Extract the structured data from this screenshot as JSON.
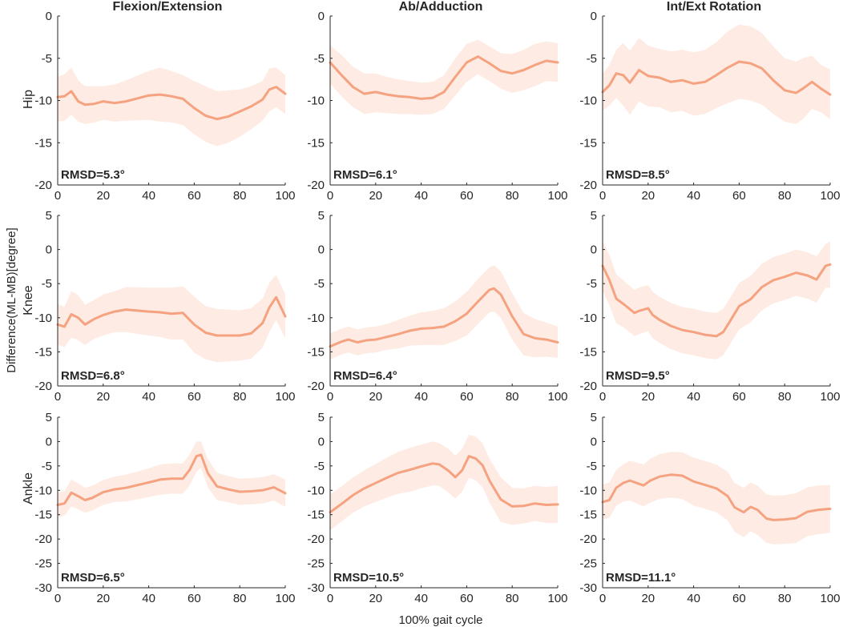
{
  "colors": {
    "line": "#f5a280",
    "band": "#fde4da",
    "axis": "#262626"
  },
  "chart_data": {
    "type": "line",
    "title": "",
    "xlabel": "100% gait cycle",
    "ylabel": "Difference(ML-MB)[degree]",
    "column_titles": [
      "Flexion/Extension",
      "Ab/Adduction",
      "Int/Ext Rotation"
    ],
    "row_labels": [
      "Hip",
      "Knee",
      "Ankle"
    ],
    "xlim": [
      0,
      100
    ],
    "xticks": [
      0,
      20,
      40,
      60,
      80,
      100
    ],
    "grid": false,
    "panels": [
      {
        "row": "Hip",
        "column": "Flexion/Extension",
        "ylim": [
          -20,
          0
        ],
        "yticks": [
          -20,
          -15,
          -10,
          -5,
          0
        ],
        "rmsd_label": "RMSD=5.3°",
        "x": [
          0,
          3,
          6,
          9,
          12,
          16,
          20,
          25,
          30,
          40,
          45,
          50,
          55,
          60,
          65,
          70,
          75,
          80,
          85,
          90,
          93,
          96,
          100
        ],
        "mean": [
          -9.6,
          -9.5,
          -8.9,
          -10.1,
          -10.5,
          -10.4,
          -10.1,
          -10.3,
          -10.1,
          -9.4,
          -9.3,
          -9.5,
          -9.8,
          -10.9,
          -11.8,
          -12.2,
          -11.9,
          -11.3,
          -10.7,
          -9.9,
          -8.7,
          -8.4,
          -9.2
        ],
        "upper": [
          -7.2,
          -6.9,
          -6.1,
          -7.6,
          -8.3,
          -8.3,
          -8.3,
          -8.1,
          -7.6,
          -6.5,
          -6.1,
          -6.5,
          -7.0,
          -7.7,
          -8.3,
          -8.9,
          -8.8,
          -8.7,
          -8.3,
          -7.7,
          -6.2,
          -6.1,
          -7.0
        ],
        "lower": [
          -12.5,
          -12.4,
          -11.7,
          -12.5,
          -12.8,
          -12.6,
          -12.3,
          -12.5,
          -12.4,
          -12.3,
          -12.5,
          -12.6,
          -12.9,
          -14.0,
          -14.9,
          -15.4,
          -15.0,
          -14.3,
          -13.4,
          -12.4,
          -11.3,
          -10.8,
          -11.6
        ]
      },
      {
        "row": "Hip",
        "column": "Ab/Adduction",
        "ylim": [
          -20,
          0
        ],
        "yticks": [
          -20,
          -15,
          -10,
          -5,
          0
        ],
        "rmsd_label": "RMSD=6.1°",
        "x": [
          0,
          5,
          10,
          15,
          20,
          25,
          30,
          35,
          40,
          45,
          50,
          55,
          60,
          65,
          70,
          75,
          80,
          85,
          90,
          95,
          100
        ],
        "mean": [
          -5.5,
          -7.0,
          -8.4,
          -9.2,
          -9.0,
          -9.3,
          -9.5,
          -9.6,
          -9.8,
          -9.7,
          -9.0,
          -7.2,
          -5.5,
          -4.8,
          -5.6,
          -6.5,
          -6.8,
          -6.4,
          -5.8,
          -5.3,
          -5.5
        ],
        "upper": [
          -3.5,
          -4.6,
          -6.0,
          -6.8,
          -6.8,
          -7.2,
          -7.5,
          -7.7,
          -7.9,
          -7.8,
          -7.0,
          -5.0,
          -3.3,
          -2.8,
          -3.6,
          -4.4,
          -4.5,
          -4.0,
          -3.3,
          -3.0,
          -3.2
        ],
        "lower": [
          -8.0,
          -9.5,
          -10.8,
          -11.6,
          -11.4,
          -11.5,
          -11.6,
          -11.6,
          -11.7,
          -11.6,
          -11.0,
          -9.4,
          -7.8,
          -6.9,
          -7.7,
          -8.6,
          -9.1,
          -8.8,
          -8.3,
          -7.7,
          -7.8
        ]
      },
      {
        "row": "Hip",
        "column": "Int/Ext Rotation",
        "ylim": [
          -20,
          0
        ],
        "yticks": [
          -20,
          -15,
          -10,
          -5,
          0
        ],
        "rmsd_label": "RMSD=8.5°",
        "x": [
          0,
          3,
          6,
          9,
          12,
          16,
          20,
          25,
          30,
          35,
          40,
          45,
          50,
          55,
          60,
          65,
          70,
          75,
          80,
          85,
          88,
          92,
          96,
          100
        ],
        "mean": [
          -9.0,
          -8.2,
          -6.8,
          -7.0,
          -7.9,
          -6.4,
          -7.1,
          -7.3,
          -7.8,
          -7.6,
          -8.0,
          -7.8,
          -7.0,
          -6.1,
          -5.4,
          -5.6,
          -6.2,
          -7.6,
          -8.8,
          -9.1,
          -8.6,
          -7.8,
          -8.6,
          -9.3
        ],
        "upper": [
          -6.8,
          -5.8,
          -4.0,
          -3.2,
          -4.1,
          -2.6,
          -3.5,
          -3.9,
          -4.2,
          -4.0,
          -4.3,
          -4.0,
          -3.1,
          -1.8,
          -1.0,
          -1.2,
          -2.0,
          -3.6,
          -5.0,
          -5.4,
          -5.0,
          -4.7,
          -5.8,
          -6.3
        ],
        "lower": [
          -11.2,
          -10.6,
          -9.7,
          -10.6,
          -11.7,
          -10.1,
          -10.7,
          -10.8,
          -11.4,
          -11.2,
          -11.8,
          -11.6,
          -10.9,
          -10.3,
          -9.8,
          -10.0,
          -10.5,
          -11.6,
          -12.5,
          -12.8,
          -12.2,
          -11.0,
          -11.4,
          -12.2
        ]
      },
      {
        "row": "Knee",
        "column": "Flexion/Extension",
        "ylim": [
          -20,
          5
        ],
        "yticks": [
          -20,
          -15,
          -10,
          -5,
          0,
          5
        ],
        "rmsd_label": "RMSD=6.8°",
        "x": [
          0,
          3,
          6,
          9,
          12,
          16,
          20,
          25,
          30,
          40,
          45,
          50,
          55,
          60,
          65,
          70,
          75,
          80,
          85,
          90,
          93,
          96,
          100
        ],
        "mean": [
          -11.0,
          -11.3,
          -9.5,
          -10.0,
          -11.0,
          -10.2,
          -9.6,
          -9.1,
          -8.8,
          -9.1,
          -9.2,
          -9.4,
          -9.3,
          -11.0,
          -12.2,
          -12.6,
          -12.6,
          -12.6,
          -12.3,
          -10.8,
          -8.5,
          -7.0,
          -9.8
        ],
        "upper": [
          -8.0,
          -8.4,
          -6.1,
          -6.7,
          -8.1,
          -7.4,
          -6.6,
          -6.1,
          -5.5,
          -5.6,
          -5.6,
          -5.6,
          -5.4,
          -6.9,
          -8.3,
          -8.7,
          -8.8,
          -8.9,
          -8.6,
          -7.2,
          -4.9,
          -3.7,
          -6.6
        ],
        "lower": [
          -14.0,
          -14.3,
          -12.9,
          -13.3,
          -14.0,
          -13.1,
          -12.6,
          -12.1,
          -12.1,
          -12.6,
          -12.8,
          -13.2,
          -13.2,
          -15.1,
          -16.1,
          -16.5,
          -16.4,
          -16.3,
          -16.0,
          -14.4,
          -12.1,
          -10.3,
          -13.0
        ]
      },
      {
        "row": "Knee",
        "column": "Ab/Adduction",
        "ylim": [
          -20,
          5
        ],
        "yticks": [
          -20,
          -15,
          -10,
          -5,
          0,
          5
        ],
        "rmsd_label": "RMSD=6.4°",
        "x": [
          0,
          5,
          8,
          12,
          16,
          20,
          25,
          30,
          35,
          40,
          45,
          50,
          55,
          60,
          65,
          70,
          72,
          75,
          80,
          85,
          90,
          95,
          100
        ],
        "mean": [
          -14.2,
          -13.5,
          -13.2,
          -13.6,
          -13.3,
          -13.2,
          -12.8,
          -12.4,
          -11.9,
          -11.6,
          -11.5,
          -11.3,
          -10.5,
          -9.4,
          -7.6,
          -5.9,
          -5.7,
          -6.6,
          -9.8,
          -12.4,
          -13.0,
          -13.2,
          -13.6
        ],
        "upper": [
          -12.3,
          -11.6,
          -11.3,
          -11.7,
          -11.4,
          -11.3,
          -10.9,
          -10.3,
          -9.7,
          -9.2,
          -9.0,
          -8.6,
          -7.6,
          -6.2,
          -4.3,
          -2.6,
          -2.3,
          -3.2,
          -6.4,
          -9.3,
          -10.2,
          -10.7,
          -11.3
        ],
        "lower": [
          -16.1,
          -15.4,
          -15.1,
          -15.5,
          -15.2,
          -15.1,
          -14.7,
          -14.5,
          -14.1,
          -14.0,
          -14.0,
          -14.0,
          -13.4,
          -12.6,
          -10.9,
          -9.2,
          -9.1,
          -10.0,
          -13.2,
          -15.5,
          -15.8,
          -15.7,
          -15.9
        ]
      },
      {
        "row": "Knee",
        "column": "Int/Ext Rotation",
        "ylim": [
          -20,
          5
        ],
        "yticks": [
          -20,
          -15,
          -10,
          -5,
          0,
          5
        ],
        "rmsd_label": "RMSD=9.5°",
        "x": [
          0,
          3,
          6,
          10,
          14,
          16,
          20,
          22,
          25,
          30,
          35,
          40,
          45,
          50,
          53,
          56,
          60,
          65,
          70,
          75,
          80,
          85,
          90,
          94,
          98,
          100
        ],
        "mean": [
          -2.4,
          -4.5,
          -7.2,
          -8.2,
          -9.3,
          -9.0,
          -8.6,
          -9.6,
          -10.3,
          -11.2,
          -11.8,
          -12.1,
          -12.5,
          -12.7,
          -12.1,
          -10.5,
          -8.3,
          -7.3,
          -5.5,
          -4.5,
          -4.0,
          -3.4,
          -3.8,
          -4.4,
          -2.4,
          -2.2
        ],
        "upper": [
          1.2,
          -0.8,
          -3.6,
          -4.8,
          -5.9,
          -5.6,
          -5.2,
          -6.2,
          -6.9,
          -7.8,
          -8.4,
          -8.7,
          -9.1,
          -9.3,
          -8.7,
          -7.1,
          -4.9,
          -3.9,
          -2.1,
          -1.1,
          -0.6,
          0.0,
          -0.4,
          -1.0,
          0.8,
          1.2
        ],
        "lower": [
          -6.0,
          -8.2,
          -10.8,
          -11.6,
          -12.7,
          -12.4,
          -12.0,
          -13.0,
          -13.7,
          -14.6,
          -15.2,
          -15.5,
          -15.9,
          -16.1,
          -15.5,
          -13.9,
          -11.7,
          -10.7,
          -8.9,
          -7.9,
          -7.4,
          -6.8,
          -7.2,
          -7.8,
          -5.6,
          -5.6
        ]
      },
      {
        "row": "Ankle",
        "column": "Flexion/Extension",
        "ylim": [
          -30,
          5
        ],
        "yticks": [
          -30,
          -25,
          -20,
          -15,
          -10,
          -5,
          0,
          5
        ],
        "rmsd_label": "RMSD=6.5°",
        "x": [
          0,
          3,
          6,
          9,
          12,
          15,
          20,
          25,
          30,
          40,
          45,
          50,
          55,
          58,
          61,
          63,
          66,
          70,
          75,
          80,
          85,
          90,
          95,
          100
        ],
        "mean": [
          -13.0,
          -12.7,
          -10.5,
          -11.2,
          -12.0,
          -11.6,
          -10.4,
          -9.8,
          -9.5,
          -8.4,
          -7.8,
          -7.6,
          -7.6,
          -5.8,
          -3.0,
          -2.7,
          -6.5,
          -9.2,
          -9.8,
          -10.3,
          -10.2,
          -10.0,
          -9.4,
          -10.6
        ],
        "upper": [
          -10.5,
          -10.2,
          -7.8,
          -8.6,
          -9.5,
          -9.1,
          -7.9,
          -7.2,
          -6.8,
          -5.5,
          -4.7,
          -4.5,
          -4.5,
          -2.6,
          0.0,
          0.0,
          -3.6,
          -6.4,
          -7.1,
          -7.6,
          -7.5,
          -7.3,
          -6.7,
          -7.8
        ],
        "lower": [
          -15.5,
          -15.2,
          -13.3,
          -13.9,
          -14.6,
          -14.2,
          -13.0,
          -12.4,
          -12.3,
          -11.4,
          -10.9,
          -10.7,
          -10.7,
          -9.0,
          -6.2,
          -5.4,
          -9.4,
          -12.0,
          -12.5,
          -13.0,
          -12.9,
          -12.7,
          -12.1,
          -13.4
        ]
      },
      {
        "row": "Ankle",
        "column": "Ab/Adduction",
        "ylim": [
          -30,
          5
        ],
        "yticks": [
          -30,
          -25,
          -20,
          -15,
          -10,
          -5,
          0,
          5
        ],
        "rmsd_label": "RMSD=10.5°",
        "x": [
          0,
          5,
          10,
          15,
          20,
          25,
          30,
          35,
          40,
          45,
          48,
          52,
          55,
          58,
          61,
          64,
          67,
          70,
          75,
          80,
          85,
          90,
          95,
          100
        ],
        "mean": [
          -14.5,
          -12.8,
          -11.0,
          -9.6,
          -8.5,
          -7.4,
          -6.4,
          -5.8,
          -5.1,
          -4.5,
          -4.7,
          -6.0,
          -7.3,
          -5.9,
          -3.0,
          -3.5,
          -4.9,
          -8.0,
          -11.9,
          -13.3,
          -13.2,
          -12.7,
          -13.0,
          -12.9
        ],
        "upper": [
          -10.8,
          -9.2,
          -7.4,
          -5.9,
          -4.6,
          -3.3,
          -2.1,
          -1.3,
          -0.6,
          0.0,
          -0.3,
          -1.5,
          -2.9,
          -1.5,
          1.4,
          1.0,
          -0.4,
          -3.5,
          -7.3,
          -9.5,
          -9.6,
          -9.1,
          -9.3,
          -9.1
        ],
        "lower": [
          -18.2,
          -16.4,
          -14.6,
          -13.3,
          -12.4,
          -11.5,
          -10.7,
          -10.3,
          -9.6,
          -9.0,
          -9.1,
          -10.5,
          -11.7,
          -10.3,
          -7.4,
          -8.0,
          -9.4,
          -12.5,
          -16.5,
          -17.1,
          -16.8,
          -16.3,
          -16.7,
          -16.7
        ]
      },
      {
        "row": "Ankle",
        "column": "Int/Ext Rotation",
        "ylim": [
          -30,
          5
        ],
        "yticks": [
          -30,
          -25,
          -20,
          -15,
          -10,
          -5,
          0,
          5
        ],
        "rmsd_label": "RMSD=11.1°",
        "x": [
          0,
          3,
          6,
          9,
          12,
          15,
          18,
          21,
          25,
          30,
          35,
          40,
          45,
          50,
          55,
          58,
          62,
          65,
          68,
          72,
          75,
          80,
          85,
          90,
          95,
          100
        ],
        "mean": [
          -12.4,
          -12.0,
          -9.5,
          -8.5,
          -8.0,
          -8.5,
          -9.0,
          -8.0,
          -7.2,
          -6.8,
          -7.0,
          -8.2,
          -8.9,
          -9.6,
          -11.2,
          -13.5,
          -14.5,
          -13.4,
          -14.0,
          -15.8,
          -16.1,
          -16.0,
          -15.7,
          -14.4,
          -14.0,
          -13.8
        ],
        "upper": [
          -8.8,
          -8.4,
          -5.8,
          -4.7,
          -3.9,
          -4.3,
          -4.7,
          -3.5,
          -2.6,
          -2.1,
          -2.2,
          -3.3,
          -4.0,
          -4.7,
          -6.2,
          -8.5,
          -9.5,
          -8.4,
          -9.0,
          -10.8,
          -11.1,
          -11.0,
          -10.6,
          -9.4,
          -9.0,
          -8.9
        ],
        "lower": [
          -16.0,
          -15.6,
          -13.2,
          -12.3,
          -12.1,
          -12.7,
          -13.3,
          -12.5,
          -11.8,
          -11.5,
          -11.8,
          -13.1,
          -13.8,
          -14.5,
          -16.2,
          -18.5,
          -19.6,
          -18.4,
          -19.1,
          -20.8,
          -21.1,
          -21.0,
          -20.8,
          -19.4,
          -19.0,
          -18.7
        ]
      }
    ]
  }
}
